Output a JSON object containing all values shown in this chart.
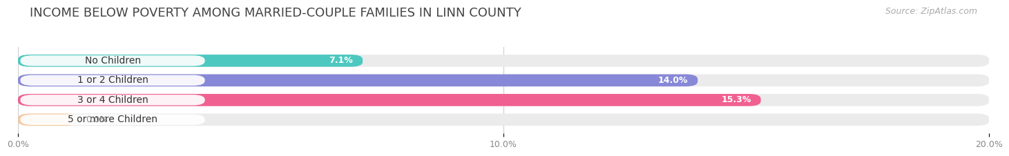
{
  "title": "INCOME BELOW POVERTY AMONG MARRIED-COUPLE FAMILIES IN LINN COUNTY",
  "source": "Source: ZipAtlas.com",
  "categories": [
    "No Children",
    "1 or 2 Children",
    "3 or 4 Children",
    "5 or more Children"
  ],
  "values": [
    7.1,
    14.0,
    15.3,
    0.0
  ],
  "bar_colors": [
    "#4dc8c0",
    "#8888d8",
    "#f06090",
    "#f5c8a0"
  ],
  "bar_bg_color": "#ebebeb",
  "background_color": "#ffffff",
  "xlim": [
    0,
    20.0
  ],
  "xticks": [
    0.0,
    10.0,
    20.0
  ],
  "xtick_labels": [
    "0.0%",
    "10.0%",
    "20.0%"
  ],
  "title_fontsize": 13,
  "source_fontsize": 9,
  "bar_height": 0.62,
  "bar_label_fontsize": 10,
  "value_label_fontsize": 9,
  "grid_color": "#cccccc",
  "label_color": "#333333",
  "value_color_inside": "#ffffff",
  "value_color_outside": "#888888"
}
